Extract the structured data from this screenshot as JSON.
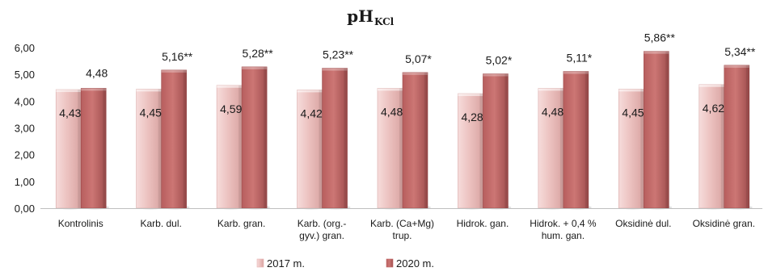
{
  "chart_data": {
    "type": "bar",
    "title_main": "pH",
    "title_sub": "KCl",
    "categories": [
      [
        "Kontrolinis"
      ],
      [
        "Karb. dul."
      ],
      [
        "Karb. gran."
      ],
      [
        "Karb. (org.-",
        "gyv.) gran."
      ],
      [
        "Karb. (Ca+Mg)",
        "trup."
      ],
      [
        "Hidrok. gan."
      ],
      [
        "Hidrok. + 0,4 %",
        "hum. gan."
      ],
      [
        "Oksidinė dul."
      ],
      [
        "Oksidinė gran."
      ]
    ],
    "series": [
      {
        "name": "2017 m.",
        "color": "#e8b4b2",
        "values": [
          4.43,
          4.45,
          4.59,
          4.42,
          4.48,
          4.28,
          4.48,
          4.45,
          4.62
        ],
        "labels": [
          "4,43",
          "4,45",
          "4,59",
          "4,42",
          "4,48",
          "4,28",
          "4,48",
          "4,45",
          "4,62"
        ]
      },
      {
        "name": "2020 m.",
        "color": "#c46a6a",
        "values": [
          4.48,
          5.16,
          5.28,
          5.23,
          5.07,
          5.02,
          5.11,
          5.86,
          5.34
        ],
        "labels": [
          "4,48",
          "5,16**",
          "5,28**",
          "5,23**",
          "5,07*",
          "5,02*",
          "5,11*",
          "5,86**",
          "5,34**"
        ]
      }
    ],
    "yticks": [
      "0,00",
      "1,00",
      "2,00",
      "3,00",
      "4,00",
      "5,00",
      "6,00"
    ],
    "ylim": [
      0,
      6
    ],
    "grid": false,
    "legend": "bottom-center"
  }
}
